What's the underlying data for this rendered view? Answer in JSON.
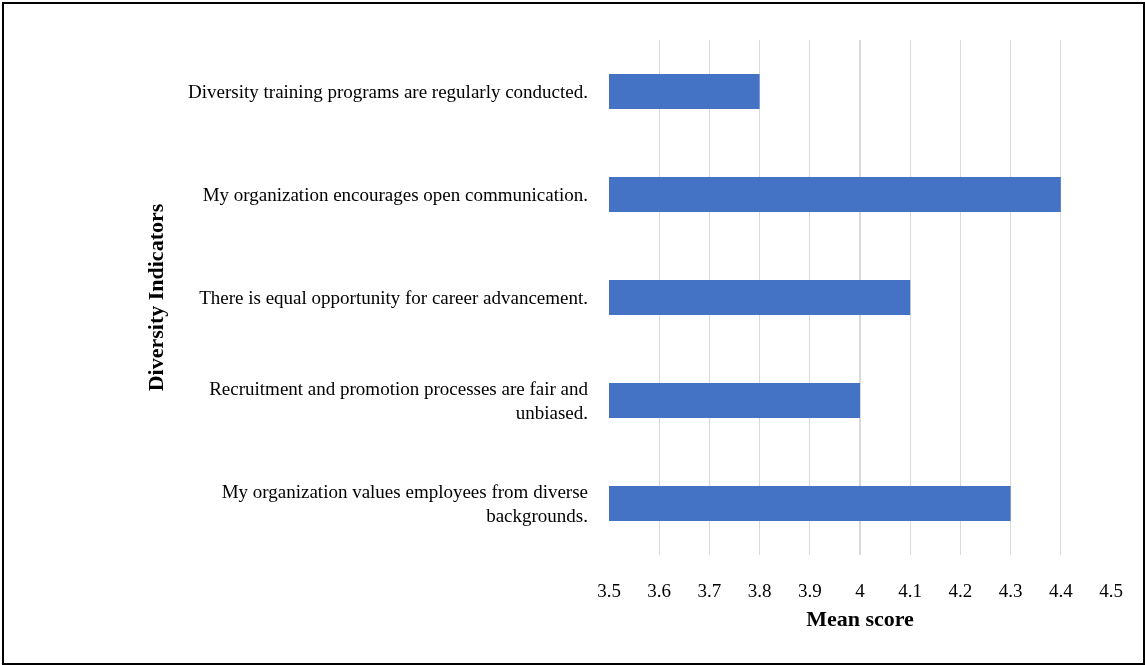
{
  "chart_data": {
    "type": "bar",
    "orientation": "horizontal",
    "xlabel": "Mean score",
    "ylabel": "Diversity Indicators",
    "categories": [
      "Diversity training programs are regularly conducted.",
      "My organization encourages open communication.",
      "There is equal opportunity for career advancement.",
      "Recruitment and promotion processes are fair and unbiased.",
      "My organization values employees from diverse backgrounds."
    ],
    "values": [
      3.8,
      4.4,
      4.1,
      4.0,
      4.3
    ],
    "color": "#4472c4",
    "xlim": [
      3.5,
      4.5
    ],
    "xticks": [
      3.5,
      3.6,
      3.7,
      3.8,
      3.9,
      4,
      4.1,
      4.2,
      4.3,
      4.4,
      4.5
    ],
    "grid": "x"
  }
}
